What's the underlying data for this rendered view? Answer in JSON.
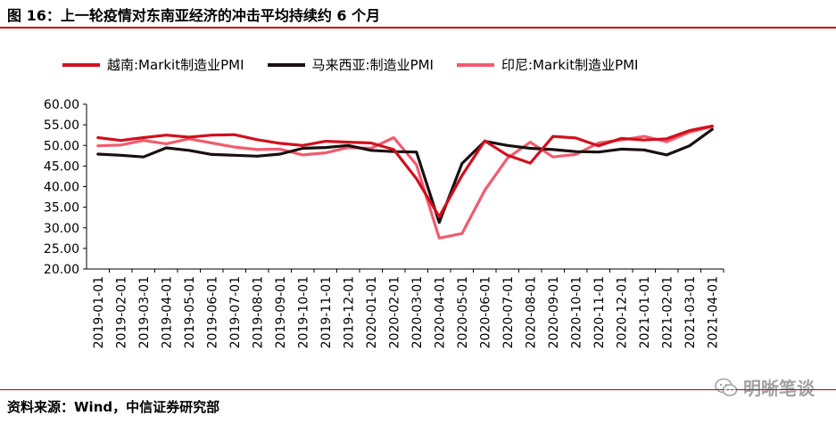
{
  "header": {
    "title": "图 16：上一轮疫情对东南亚经济的冲击平均持续约 6 个月"
  },
  "footer": {
    "source": "资料来源：Wind，中信证券研究部",
    "watermark": "明晰笔谈",
    "watermark_icon": "wechat-icon"
  },
  "chart_data": {
    "type": "line",
    "title": "",
    "xlabel": "",
    "ylabel": "",
    "ylim": [
      20,
      60
    ],
    "yticks": [
      "20.00",
      "25.00",
      "30.00",
      "35.00",
      "40.00",
      "45.00",
      "50.00",
      "55.00",
      "60.00"
    ],
    "grid": false,
    "legend_position": "top",
    "categories": [
      "2019-01-01",
      "2019-02-01",
      "2019-03-01",
      "2019-04-01",
      "2019-05-01",
      "2019-06-01",
      "2019-07-01",
      "2019-08-01",
      "2019-09-01",
      "2019-10-01",
      "2019-11-01",
      "2019-12-01",
      "2020-01-01",
      "2020-02-01",
      "2020-03-01",
      "2020-04-01",
      "2020-05-01",
      "2020-06-01",
      "2020-07-01",
      "2020-08-01",
      "2020-09-01",
      "2020-10-01",
      "2020-11-01",
      "2020-12-01",
      "2021-01-01",
      "2021-02-01",
      "2021-03-01",
      "2021-04-01"
    ],
    "series": [
      {
        "name": "越南:Markit制造业PMI",
        "color": "#d0101e",
        "values": [
          51.9,
          51.2,
          51.9,
          52.5,
          52.0,
          52.5,
          52.6,
          51.4,
          50.5,
          50.0,
          51.0,
          50.8,
          50.6,
          49.0,
          41.9,
          32.7,
          42.7,
          51.1,
          47.6,
          45.7,
          52.2,
          51.8,
          49.9,
          51.7,
          51.3,
          51.6,
          53.6,
          54.7
        ]
      },
      {
        "name": "马来西亚:制造业PMI",
        "color": "#1a1010",
        "values": [
          47.9,
          47.6,
          47.2,
          49.4,
          48.8,
          47.8,
          47.6,
          47.4,
          47.9,
          49.3,
          49.5,
          50.0,
          48.8,
          48.5,
          48.4,
          31.3,
          45.6,
          51.0,
          50.0,
          49.3,
          49.0,
          48.5,
          48.4,
          49.1,
          48.9,
          47.7,
          49.9,
          53.9
        ]
      },
      {
        "name": "印尼:Markit制造业PMI",
        "color": "#f05c6e",
        "values": [
          49.9,
          50.1,
          51.2,
          50.4,
          51.6,
          50.6,
          49.6,
          49.0,
          49.1,
          47.7,
          48.2,
          49.5,
          49.3,
          51.9,
          45.3,
          27.5,
          28.6,
          39.1,
          46.9,
          50.8,
          47.2,
          47.8,
          50.6,
          51.3,
          52.2,
          50.9,
          53.2,
          54.6
        ]
      }
    ]
  }
}
